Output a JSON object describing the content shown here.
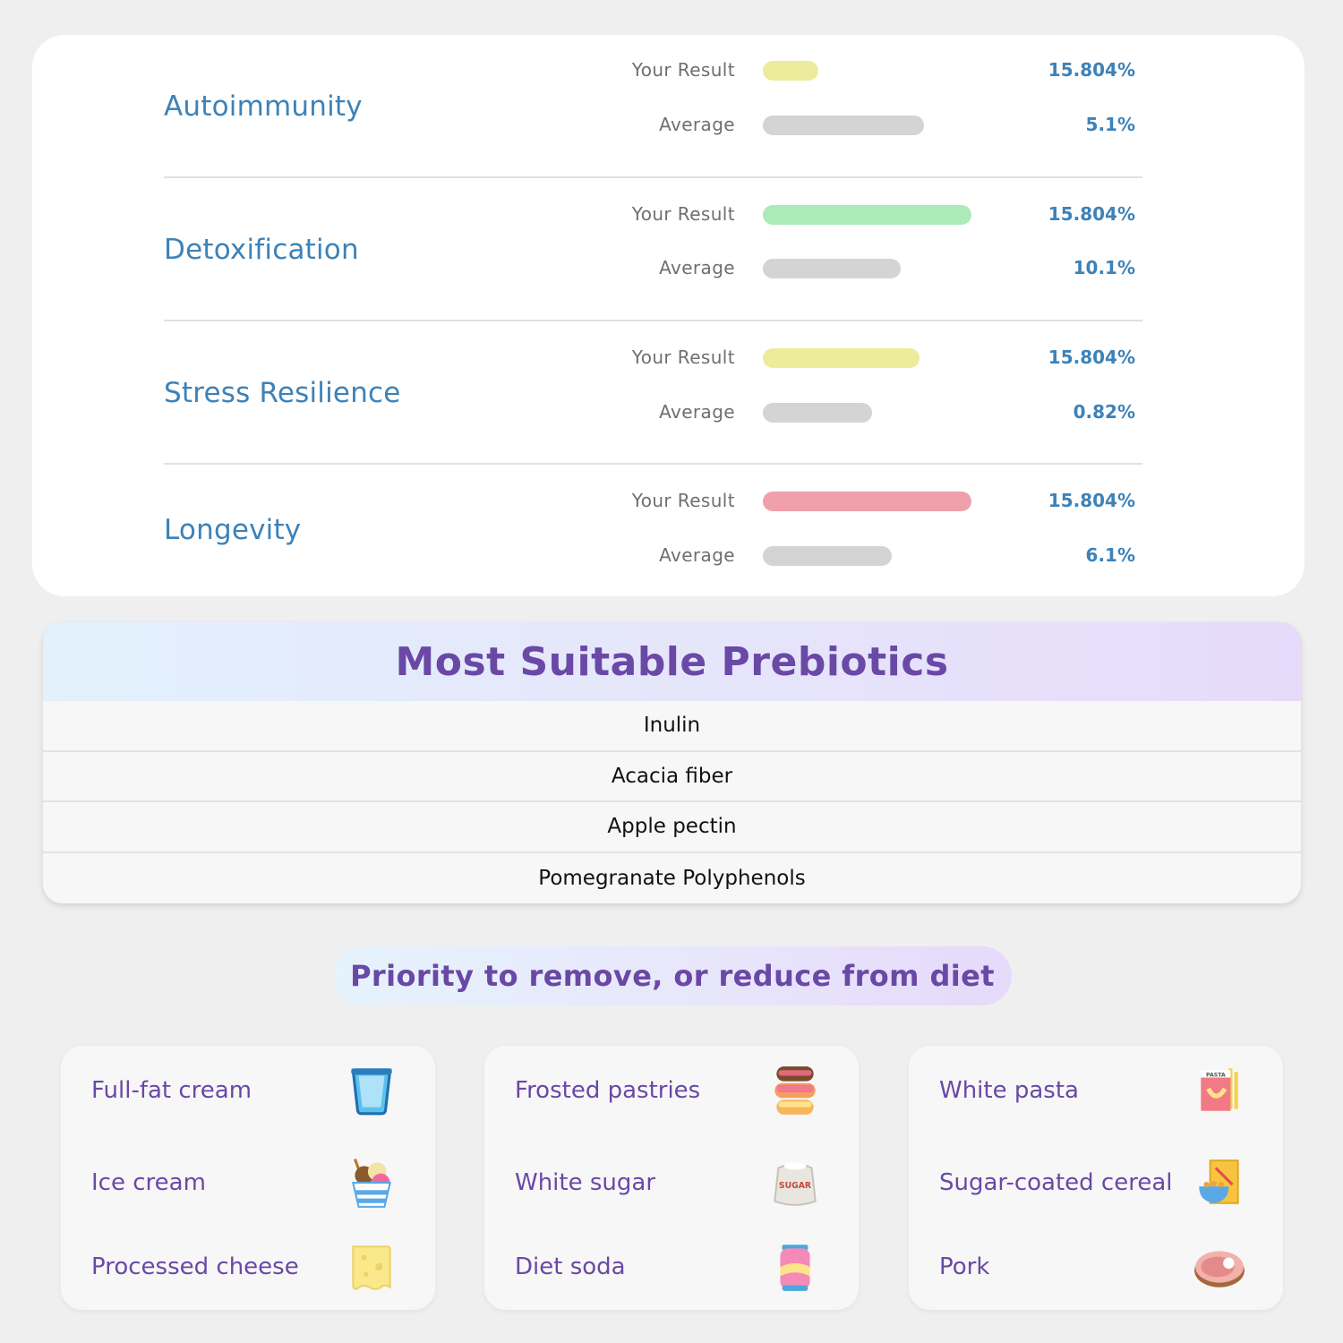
{
  "metrics": [
    {
      "title": "Autoimmunity",
      "result_label": "Your Result",
      "result_value": "15.804%",
      "result_fraction": 0.26,
      "result_color": "#ecec9c",
      "average_label": "Average",
      "average_value": "5.1%",
      "average_fraction": 0.75,
      "average_color": "#d4d4d4"
    },
    {
      "title": "Detoxification",
      "result_label": "Your Result",
      "result_value": "15.804%",
      "result_fraction": 0.97,
      "result_color": "#acebb8",
      "average_label": "Average",
      "average_value": "10.1%",
      "average_fraction": 0.64,
      "average_color": "#d4d4d4"
    },
    {
      "title": "Stress Resilience",
      "result_label": "Your Result",
      "result_value": "15.804%",
      "result_fraction": 0.73,
      "result_color": "#ecec9c",
      "average_label": "Average",
      "average_value": "0.82%",
      "average_fraction": 0.51,
      "average_color": "#d4d4d4"
    },
    {
      "title": "Longevity",
      "result_label": "Your Result",
      "result_value": "15.804%",
      "result_fraction": 0.97,
      "result_color": "#f0a0ab",
      "average_label": "Average",
      "average_value": "6.1%",
      "average_fraction": 0.6,
      "average_color": "#d4d4d4"
    }
  ],
  "prebiotics": {
    "title": "Most Suitable Prebiotics",
    "items": [
      "Inulin",
      "Acacia fiber",
      "Apple pectin",
      "Pomegranate Polyphenols"
    ]
  },
  "priority": {
    "title": "Priority to remove, or reduce from diet"
  },
  "food_columns": [
    [
      {
        "name": "Full-fat cream",
        "icon": "cream-cup-icon"
      },
      {
        "name": "Ice cream",
        "icon": "ice-cream-icon"
      },
      {
        "name": "Processed cheese",
        "icon": "cheese-icon"
      }
    ],
    [
      {
        "name": "Frosted pastries",
        "icon": "donut-stack-icon"
      },
      {
        "name": "White sugar",
        "icon": "sugar-bag-icon"
      },
      {
        "name": "Diet soda",
        "icon": "soda-can-icon"
      }
    ],
    [
      {
        "name": "White pasta",
        "icon": "pasta-box-icon"
      },
      {
        "name": "Sugar-coated cereal",
        "icon": "cereal-box-icon"
      },
      {
        "name": "Pork",
        "icon": "pork-steak-icon"
      }
    ]
  ],
  "icon_text": {
    "sugar": "SUGAR",
    "pasta": "PASTA"
  }
}
